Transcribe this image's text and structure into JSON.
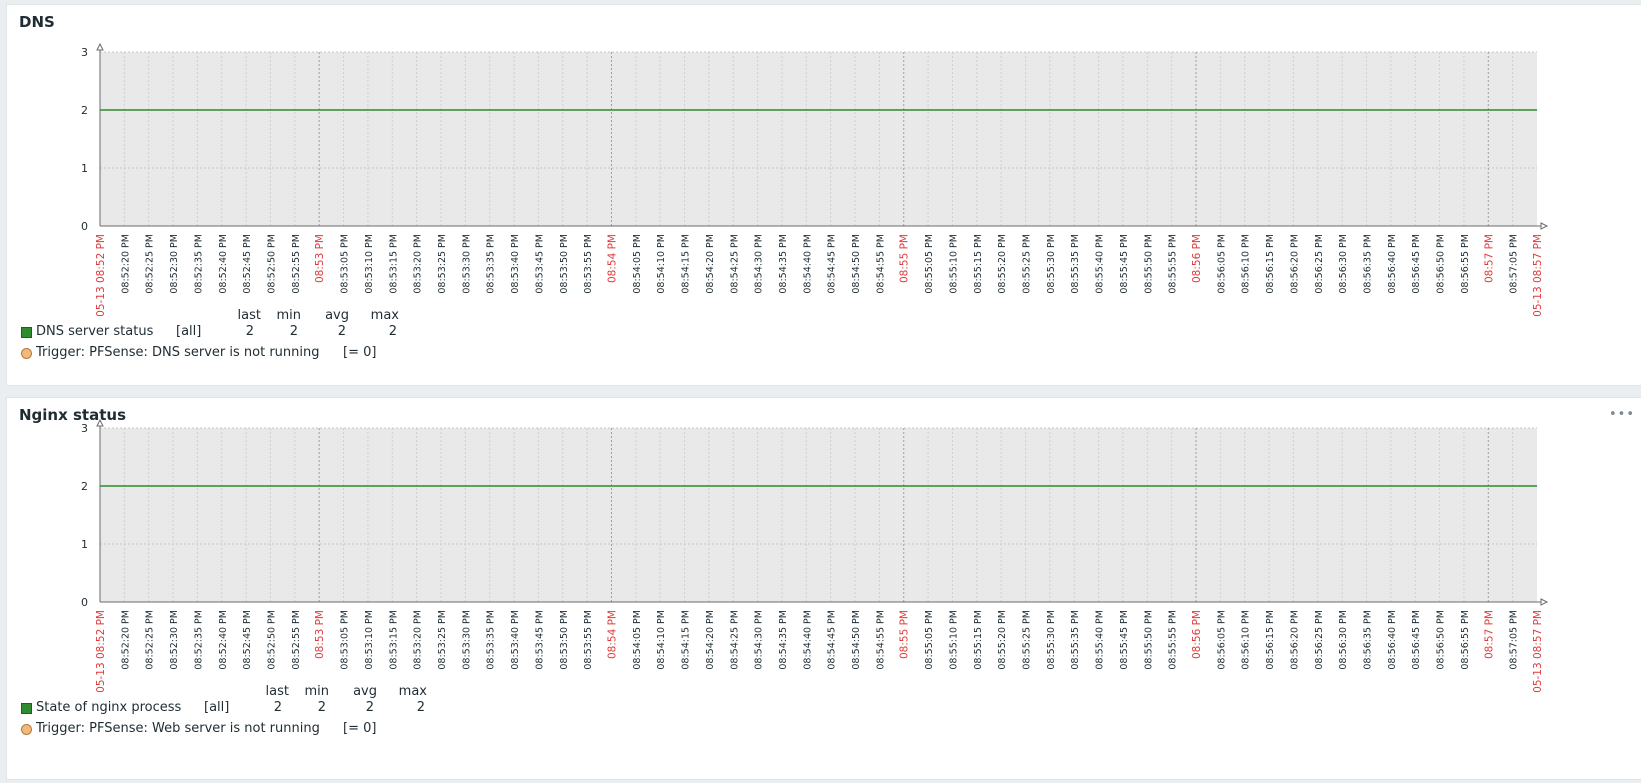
{
  "colors": {
    "series": "#2e8b2e",
    "trigger": "#f2b97c",
    "major_tick": "#e0393a",
    "minor_tick": "#1f2c33",
    "plot_bg": "#e9e9e9"
  },
  "menu_icon": "ellipsis-icon",
  "panels": [
    {
      "title": "DNS",
      "legend": {
        "headers": [
          "last",
          "min",
          "avg",
          "max"
        ],
        "item": {
          "name": "DNS server status",
          "func": "[all]",
          "values": [
            "2",
            "2",
            "2",
            "2"
          ]
        },
        "trigger": {
          "text": "Trigger: PFSense: DNS server is not running",
          "cond": "[= 0]"
        }
      }
    },
    {
      "title": "Nginx status",
      "menu": "•••",
      "legend": {
        "headers": [
          "last",
          "min",
          "avg",
          "max"
        ],
        "item": {
          "name": "State of nginx process",
          "func": "[all]",
          "values": [
            "2",
            "2",
            "2",
            "2"
          ]
        },
        "trigger": {
          "text": "Trigger: PFSense: Web server is not running",
          "cond": "[= 0]"
        }
      }
    }
  ],
  "chart_data": [
    {
      "type": "line",
      "title": "DNS",
      "ylim": [
        0,
        3
      ],
      "yticks": [
        0,
        1,
        2,
        3
      ],
      "xlim": [
        "05-13 08:52:15 PM",
        "05-13 08:57:15 PM"
      ],
      "x_tick_labels": [
        "05-13 08:52 PM",
        "08:52:20 PM",
        "08:52:25 PM",
        "08:52:30 PM",
        "08:52:35 PM",
        "08:52:40 PM",
        "08:52:45 PM",
        "08:52:50 PM",
        "08:52:55 PM",
        "08:53 PM",
        "08:53:05 PM",
        "08:53:10 PM",
        "08:53:15 PM",
        "08:53:20 PM",
        "08:53:25 PM",
        "08:53:30 PM",
        "08:53:35 PM",
        "08:53:40 PM",
        "08:53:45 PM",
        "08:53:50 PM",
        "08:53:55 PM",
        "08:54 PM",
        "08:54:05 PM",
        "08:54:10 PM",
        "08:54:15 PM",
        "08:54:20 PM",
        "08:54:25 PM",
        "08:54:30 PM",
        "08:54:35 PM",
        "08:54:40 PM",
        "08:54:45 PM",
        "08:54:50 PM",
        "08:54:55 PM",
        "08:55 PM",
        "08:55:05 PM",
        "08:55:10 PM",
        "08:55:15 PM",
        "08:55:20 PM",
        "08:55:25 PM",
        "08:55:30 PM",
        "08:55:35 PM",
        "08:55:40 PM",
        "08:55:45 PM",
        "08:55:50 PM",
        "08:55:55 PM",
        "08:56 PM",
        "08:56:05 PM",
        "08:56:10 PM",
        "08:56:15 PM",
        "08:56:20 PM",
        "08:56:25 PM",
        "08:56:30 PM",
        "08:56:35 PM",
        "08:56:40 PM",
        "08:56:45 PM",
        "08:56:50 PM",
        "08:56:55 PM",
        "08:57 PM",
        "08:57:05 PM",
        "05-13 08:57 PM"
      ],
      "major_ticks": [
        "05-13 08:52 PM",
        "08:53 PM",
        "08:54 PM",
        "08:55 PM",
        "08:56 PM",
        "08:57 PM",
        "05-13 08:57 PM"
      ],
      "grid": true,
      "series": [
        {
          "name": "DNS server status",
          "x": [
            "05-13 08:52:15 PM",
            "05-13 08:57:15 PM"
          ],
          "values": [
            2,
            2
          ]
        }
      ]
    },
    {
      "type": "line",
      "title": "Nginx status",
      "ylim": [
        0,
        3
      ],
      "yticks": [
        0,
        1,
        2,
        3
      ],
      "xlim": [
        "05-13 08:52:15 PM",
        "05-13 08:57:15 PM"
      ],
      "x_tick_labels": [
        "05-13 08:52 PM",
        "08:52:20 PM",
        "08:52:25 PM",
        "08:52:30 PM",
        "08:52:35 PM",
        "08:52:40 PM",
        "08:52:45 PM",
        "08:52:50 PM",
        "08:52:55 PM",
        "08:53 PM",
        "08:53:05 PM",
        "08:53:10 PM",
        "08:53:15 PM",
        "08:53:20 PM",
        "08:53:25 PM",
        "08:53:30 PM",
        "08:53:35 PM",
        "08:53:40 PM",
        "08:53:45 PM",
        "08:53:50 PM",
        "08:53:55 PM",
        "08:54 PM",
        "08:54:05 PM",
        "08:54:10 PM",
        "08:54:15 PM",
        "08:54:20 PM",
        "08:54:25 PM",
        "08:54:30 PM",
        "08:54:35 PM",
        "08:54:40 PM",
        "08:54:45 PM",
        "08:54:50 PM",
        "08:54:55 PM",
        "08:55 PM",
        "08:55:05 PM",
        "08:55:10 PM",
        "08:55:15 PM",
        "08:55:20 PM",
        "08:55:25 PM",
        "08:55:30 PM",
        "08:55:35 PM",
        "08:55:40 PM",
        "08:55:45 PM",
        "08:55:50 PM",
        "08:55:55 PM",
        "08:56 PM",
        "08:56:05 PM",
        "08:56:10 PM",
        "08:56:15 PM",
        "08:56:20 PM",
        "08:56:25 PM",
        "08:56:30 PM",
        "08:56:35 PM",
        "08:56:40 PM",
        "08:56:45 PM",
        "08:56:50 PM",
        "08:56:55 PM",
        "08:57 PM",
        "08:57:05 PM",
        "05-13 08:57 PM"
      ],
      "major_ticks": [
        "05-13 08:52 PM",
        "08:53 PM",
        "08:54 PM",
        "08:55 PM",
        "08:56 PM",
        "08:57 PM",
        "05-13 08:57 PM"
      ],
      "grid": true,
      "series": [
        {
          "name": "State of nginx process",
          "x": [
            "05-13 08:52:15 PM",
            "05-13 08:57:15 PM"
          ],
          "values": [
            2,
            2
          ]
        }
      ]
    }
  ]
}
